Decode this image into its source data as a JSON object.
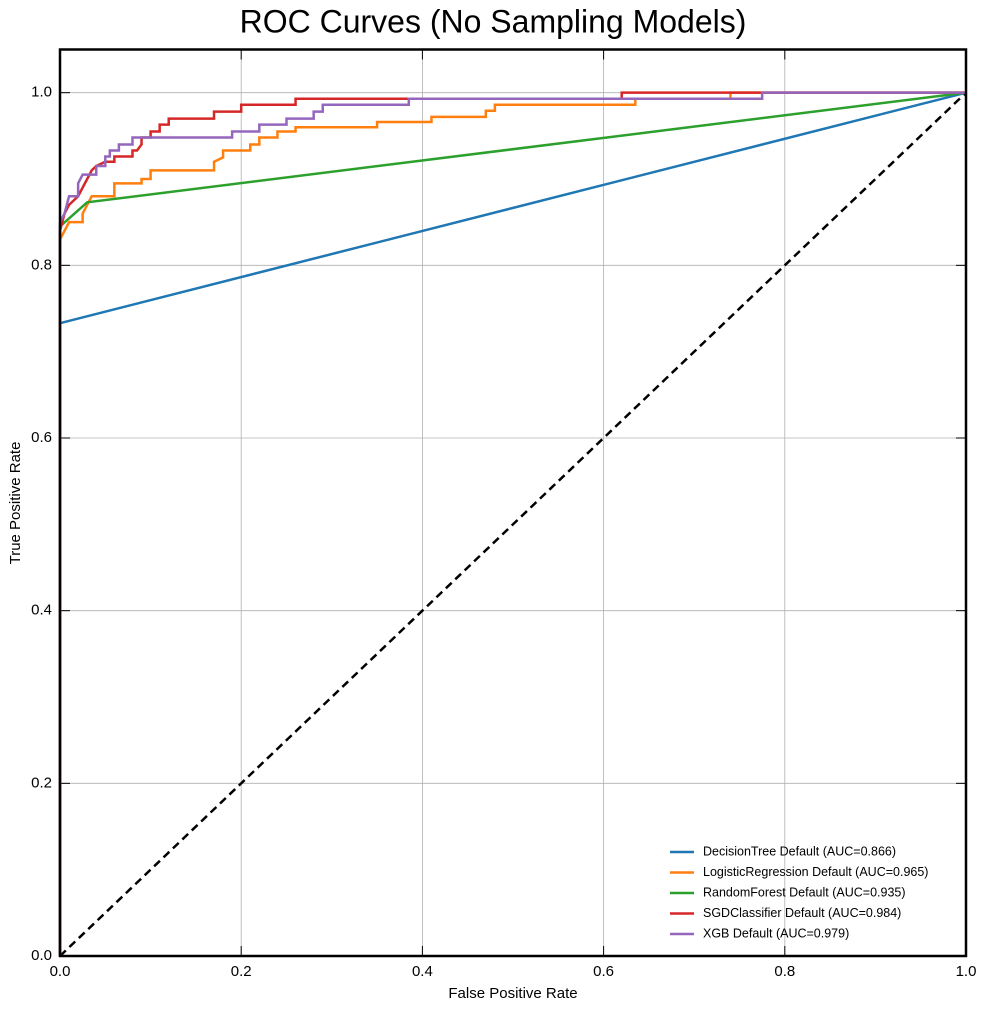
{
  "chart_data": {
    "type": "line",
    "title": "ROC Curves (No Sampling Models)",
    "x_label": "False Positive Rate",
    "y_label": "True Positive Rate",
    "xlim": [
      0,
      1
    ],
    "ylim": [
      0,
      1.05
    ],
    "xticks": [
      {
        "value": 0,
        "label": "0.0"
      },
      0.2,
      0.4,
      0.6,
      0.8,
      {
        "value": 1,
        "label": "1.0"
      }
    ],
    "yticks": [
      {
        "value": 0,
        "label": "0.0"
      },
      0.2,
      0.4,
      0.6,
      0.8,
      {
        "value": 1,
        "label": "1.0"
      }
    ],
    "grid": true,
    "legend": "lower right",
    "series": [
      {
        "name": "DecisionTree Default (AUC=0.866)",
        "color": "#1f77b4",
        "x": [
          0,
          0,
          1
        ],
        "values": [
          0,
          0.733,
          1
        ]
      },
      {
        "name": "LogisticRegression Default (AUC=0.965)",
        "color": "#ff7f0e",
        "x": [
          0,
          0,
          0.005,
          0.01,
          0.025,
          0.025,
          0.03,
          0.035,
          0.06,
          0.06,
          0.09,
          0.09,
          0.1,
          0.1,
          0.17,
          0.17,
          0.18,
          0.18,
          0.21,
          0.21,
          0.22,
          0.22,
          0.24,
          0.24,
          0.26,
          0.26,
          0.35,
          0.35,
          0.41,
          0.41,
          0.47,
          0.47,
          0.48,
          0.48,
          0.635,
          0.635,
          0.74,
          0.74,
          1
        ],
        "values": [
          0,
          0.83,
          0.84,
          0.85,
          0.85,
          0.86,
          0.87,
          0.88,
          0.88,
          0.895,
          0.895,
          0.9,
          0.9,
          0.91,
          0.91,
          0.92,
          0.925,
          0.933,
          0.933,
          0.94,
          0.94,
          0.948,
          0.948,
          0.955,
          0.955,
          0.96,
          0.96,
          0.966,
          0.966,
          0.972,
          0.972,
          0.979,
          0.979,
          0.986,
          0.986,
          0.993,
          0.993,
          1,
          1
        ]
      },
      {
        "name": "RandomForest Default (AUC=0.935)",
        "color": "#2ca02c",
        "x": [
          0,
          0,
          0.03,
          1
        ],
        "values": [
          0,
          0.845,
          0.873,
          1
        ]
      },
      {
        "name": "SGDClassifier Default (AUC=0.984)",
        "color": "#d62728",
        "x": [
          0,
          0,
          0.005,
          0.01,
          0.02,
          0.03,
          0.035,
          0.04,
          0.05,
          0.06,
          0.06,
          0.08,
          0.08,
          0.085,
          0.09,
          0.09,
          0.1,
          0.1,
          0.11,
          0.11,
          0.12,
          0.12,
          0.17,
          0.17,
          0.2,
          0.2,
          0.26,
          0.26,
          0.62,
          0.62,
          1
        ],
        "values": [
          0,
          0.84,
          0.86,
          0.87,
          0.88,
          0.9,
          0.91,
          0.915,
          0.92,
          0.92,
          0.926,
          0.926,
          0.933,
          0.933,
          0.94,
          0.948,
          0.948,
          0.955,
          0.955,
          0.963,
          0.963,
          0.97,
          0.97,
          0.978,
          0.978,
          0.986,
          0.986,
          0.993,
          0.993,
          1,
          1
        ]
      },
      {
        "name": "XGB Default (AUC=0.979)",
        "color": "#9467bd",
        "x": [
          0,
          0,
          0.005,
          0.01,
          0.02,
          0.02,
          0.025,
          0.04,
          0.04,
          0.05,
          0.05,
          0.055,
          0.055,
          0.065,
          0.065,
          0.08,
          0.08,
          0.19,
          0.19,
          0.22,
          0.22,
          0.25,
          0.25,
          0.28,
          0.28,
          0.29,
          0.29,
          0.385,
          0.385,
          0.775,
          0.775,
          1
        ],
        "values": [
          0,
          0.85,
          0.86,
          0.88,
          0.88,
          0.895,
          0.905,
          0.905,
          0.915,
          0.915,
          0.926,
          0.926,
          0.933,
          0.933,
          0.94,
          0.94,
          0.948,
          0.948,
          0.955,
          0.955,
          0.963,
          0.963,
          0.97,
          0.97,
          0.978,
          0.978,
          0.986,
          0.986,
          0.993,
          0.993,
          1,
          1
        ]
      }
    ],
    "reference_line": {
      "color": "#000000",
      "x": [
        0,
        1
      ],
      "values": [
        0,
        1
      ]
    }
  }
}
